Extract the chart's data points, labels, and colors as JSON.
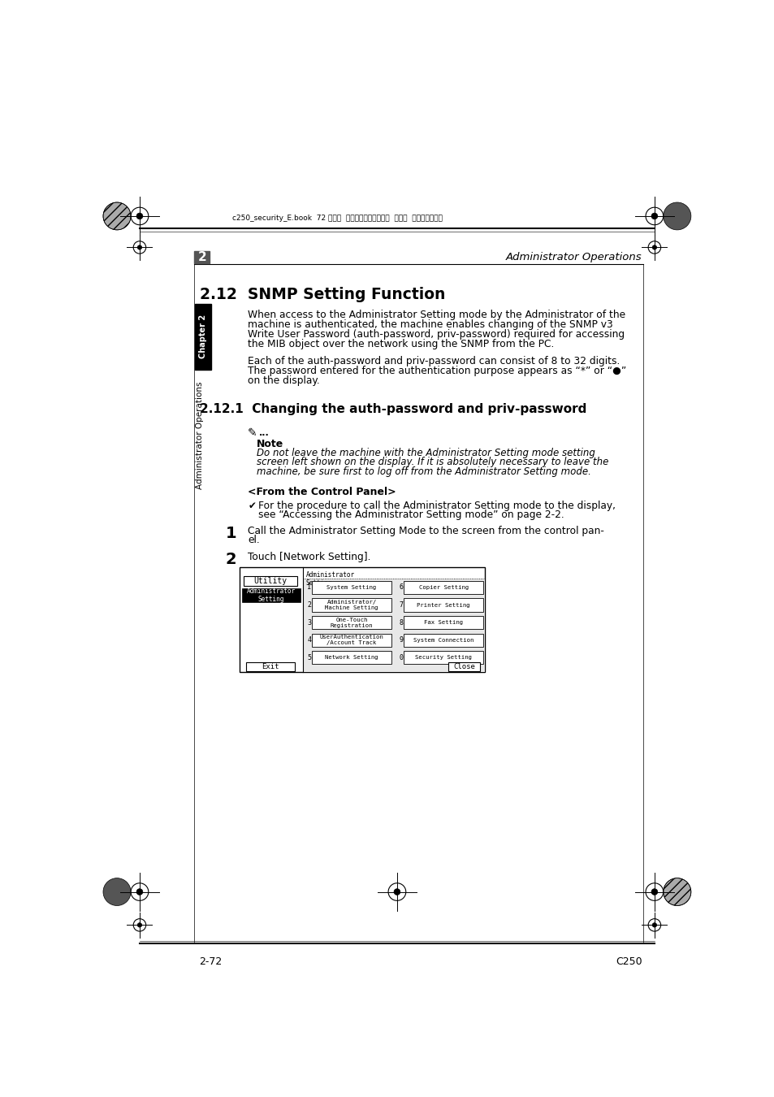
{
  "page_bg": "#ffffff",
  "header_text": "Administrator Operations",
  "header_chapter_num": "2",
  "top_file_text": "c250_security_E.book  72 ページ  ２００７年４月１１日  水曜日  午前１１時２分",
  "section_title": "2.12  SNMP Setting Function",
  "body_para1_line1": "When access to the Administrator Setting mode by the Administrator of the",
  "body_para1_line2": "machine is authenticated, the machine enables changing of the SNMP v3",
  "body_para1_line3": "Write User Password (auth-password, priv-password) required for accessing",
  "body_para1_line4": "the MIB object over the network using the SNMP from the PC.",
  "body_para2_line1": "Each of the auth-password and priv-password can consist of 8 to 32 digits.",
  "body_para2_line2": "The password entered for the authentication purpose appears as “*” or “●”",
  "body_para2_line3": "on the display.",
  "subsection_title": "2.12.1  Changing the auth-password and priv-password",
  "note_dots": "...",
  "note_label": "Note",
  "note_text_line1": "Do not leave the machine with the Administrator Setting mode setting",
  "note_text_line2": "screen left shown on the display. If it is absolutely necessary to leave the",
  "note_text_line3": "machine, be sure first to log off from the Administrator Setting mode.",
  "control_panel_header": "<From the Control Panel>",
  "bullet_text_line1": "For the procedure to call the Administrator Setting mode to the display,",
  "bullet_text_line2": "see “Accessing the Administrator Setting mode” on page 2-2.",
  "step1_num": "1",
  "step1_line1": "Call the Administrator Setting Mode to the screen from the control pan-",
  "step1_line2": "el.",
  "step2_num": "2",
  "step2_text": "Touch [Network Setting].",
  "footer_left": "2-72",
  "footer_right": "C250",
  "chapter_tab_text": "Chapter 2",
  "side_tab_text": "Administrator Operations"
}
